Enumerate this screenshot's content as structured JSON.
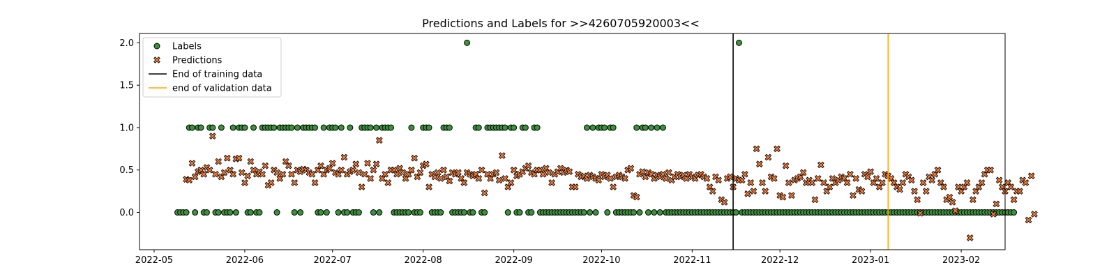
{
  "chart_data": {
    "type": "scatter",
    "title": "Predictions and Labels for >>4260705920003<<",
    "xlabel": "",
    "ylabel": "",
    "x_axis": {
      "type": "date",
      "range": [
        "2022-04-26",
        "2023-02-16"
      ],
      "ticks": [
        "2022-05-01",
        "2022-06-01",
        "2022-07-01",
        "2022-08-01",
        "2022-09-01",
        "2022-10-01",
        "2022-11-01",
        "2022-12-01",
        "2023-01-01",
        "2023-02-01"
      ],
      "tick_labels": [
        "2022-05",
        "2022-06",
        "2022-07",
        "2022-08",
        "2022-09",
        "2022-10",
        "2022-11",
        "2022-12",
        "2023-01",
        "2023-02"
      ]
    },
    "y_axis": {
      "range": [
        -0.44,
        2.11
      ],
      "ticks": [
        0.0,
        0.5,
        1.0,
        1.5,
        2.0
      ],
      "tick_labels": [
        "0.0",
        "0.5",
        "1.0",
        "1.5",
        "2.0"
      ]
    },
    "grid": false,
    "legend_placement": "upper-left",
    "legend": [
      {
        "label": "Labels",
        "marker": "circle",
        "color": "#2ca02c"
      },
      {
        "label": "Predictions",
        "marker": "x-cross",
        "color": "#ff7f0e"
      },
      {
        "label": "End of training data",
        "marker": "line",
        "color": "#000000"
      },
      {
        "label": "end of validation data",
        "marker": "line",
        "color": "#ffa500"
      }
    ],
    "vlines": [
      {
        "name": "End of training data",
        "x": "2022-11-15",
        "color": "#000000"
      },
      {
        "name": "end of validation data",
        "x": "2023-01-07",
        "color": "#ffa500"
      }
    ],
    "series": [
      {
        "name": "Labels",
        "color": "#3a923a",
        "marker": "circle",
        "start_date": "2022-05-09",
        "values": [
          0,
          0,
          0,
          0,
          1,
          1,
          0,
          1,
          1,
          0,
          0,
          1,
          1,
          0,
          0,
          1,
          0,
          0,
          0,
          1,
          0,
          1,
          1,
          1,
          0,
          0,
          1,
          0,
          0,
          1,
          1,
          1,
          1,
          1,
          0,
          1,
          1,
          1,
          1,
          1,
          0,
          1,
          0,
          1,
          1,
          1,
          1,
          1,
          0,
          0,
          1,
          0,
          1,
          1,
          1,
          0,
          1,
          0,
          0,
          1,
          0,
          0,
          0,
          1,
          1,
          1,
          1,
          0,
          1,
          0,
          1,
          1,
          1,
          1,
          0,
          0,
          0,
          0,
          0,
          0,
          1,
          0,
          0,
          0,
          1,
          1,
          1,
          0,
          0,
          0,
          0,
          1,
          1,
          1,
          0,
          0,
          0,
          0,
          0,
          2,
          0,
          0,
          1,
          1,
          0,
          0,
          1,
          1,
          1,
          1,
          1,
          1,
          1,
          0,
          1,
          1,
          0,
          0,
          1,
          1,
          0,
          0,
          1,
          1,
          0,
          0,
          0,
          0,
          0,
          0,
          0,
          0,
          0,
          0,
          0,
          0,
          0,
          0,
          0,
          0,
          1,
          0,
          1,
          0,
          1,
          1,
          1,
          0,
          1,
          1,
          0,
          0,
          0,
          0,
          0,
          0,
          0,
          1,
          0,
          1,
          1,
          0,
          1,
          0,
          1,
          0,
          1,
          0,
          0,
          0,
          0,
          0,
          0,
          0,
          0,
          0,
          0,
          0,
          0,
          0,
          0,
          0,
          0,
          0,
          0,
          0,
          0,
          0,
          0,
          0,
          0,
          0,
          2,
          0,
          0,
          0,
          0,
          0,
          0,
          0,
          0,
          0,
          0,
          0,
          0,
          0,
          0,
          0,
          0,
          0,
          0,
          0,
          0,
          0,
          0,
          0,
          0,
          0,
          0,
          0,
          0,
          0,
          0,
          0,
          0,
          0,
          0,
          0,
          0,
          0,
          0,
          0,
          0,
          0,
          0,
          0,
          0,
          0,
          0,
          0,
          0,
          0,
          0,
          0,
          0,
          0,
          0,
          0,
          0,
          0,
          0,
          0,
          0,
          0,
          0,
          0,
          0,
          0,
          0,
          0,
          0,
          0,
          0,
          0,
          0,
          0,
          0,
          0,
          0,
          0,
          0,
          0,
          0,
          0,
          0,
          0,
          0,
          0,
          0,
          0,
          0,
          0,
          0,
          0,
          0,
          0,
          0
        ]
      },
      {
        "name": "Predictions",
        "color": "#f07a36",
        "marker": "x-cross",
        "start_date": "2022-05-12",
        "values": [
          0.39,
          0.38,
          0.58,
          0.42,
          0.48,
          0.5,
          0.45,
          0.53,
          0.5,
          0.9,
          0.45,
          0.6,
          0.42,
          0.47,
          0.64,
          0.5,
          0.45,
          0.63,
          0.64,
          0.47,
          0.35,
          0.43,
          0.6,
          0.5,
          0.45,
          0.48,
          0.45,
          0.55,
          0.32,
          0.35,
          0.5,
          0.47,
          0.4,
          0.45,
          0.6,
          0.55,
          0.45,
          0.35,
          0.5,
          0.48,
          0.51,
          0.5,
          0.47,
          0.45,
          0.35,
          0.5,
          0.55,
          0.45,
          0.5,
          0.52,
          0.58,
          0.47,
          0.45,
          0.5,
          0.65,
          0.45,
          0.48,
          0.5,
          0.57,
          0.47,
          0.3,
          0.45,
          0.58,
          0.4,
          0.5,
          0.57,
          0.85,
          0.4,
          0.45,
          0.35,
          0.5,
          0.5,
          0.45,
          0.52,
          0.47,
          0.4,
          0.45,
          0.5,
          0.64,
          0.42,
          0.47,
          0.55,
          0.57,
          0.3,
          0.45,
          0.42,
          0.47,
          0.4,
          0.5,
          0.42,
          0.37,
          0.47,
          0.45,
          0.47,
          0.4,
          0.35,
          0.47,
          0.45,
          0.43,
          0.45,
          0.4,
          0.5,
          0.23,
          0.45,
          0.4,
          0.45,
          0.47,
          0.38,
          0.67,
          0.4,
          0.3,
          0.35,
          0.5,
          0.43,
          0.45,
          0.48,
          0.52,
          0.55,
          0.47,
          0.45,
          0.5,
          0.5,
          0.45,
          0.52,
          0.47,
          0.35,
          0.45,
          0.48,
          0.52,
          0.47,
          0.5,
          0.48,
          0.3,
          0.3,
          0.45,
          0.42,
          0.43,
          0.4,
          0.44,
          0.42,
          0.4,
          0.38,
          0.45,
          0.42,
          0.44,
          0.4,
          0.3,
          0.42,
          0.44,
          0.42,
          0.4,
          0.5,
          0.52,
          0.2,
          0.18,
          0.45,
          0.48,
          0.42,
          0.47,
          0.45,
          0.4,
          0.44,
          0.42,
          0.45,
          0.4,
          0.47,
          0.38,
          0.42,
          0.45,
          0.42,
          0.44,
          0.4,
          0.45,
          0.42,
          0.4,
          0.44,
          0.45,
          0.42,
          0.4,
          0.3,
          0.25,
          0.42,
          0.38,
          0.15,
          0.12,
          0.4,
          0.42,
          0.3,
          0.4,
          0.38,
          0.38,
          0.45,
          0.22,
          0.35,
          0.25,
          0.75,
          0.57,
          0.35,
          0.25,
          0.65,
          0.42,
          0.4,
          0.75,
          0.2,
          0.18,
          0.55,
          0.35,
          0.2,
          0.38,
          0.4,
          0.42,
          0.47,
          0.35,
          0.38,
          0.35,
          0.15,
          0.4,
          0.56,
          0.35,
          0.25,
          0.3,
          0.4,
          0.35,
          0.38,
          0.42,
          0.4,
          0.35,
          0.45,
          0.2,
          0.4,
          0.27,
          0.25,
          0.45,
          0.42,
          0.48,
          0.35,
          0.4,
          0.3,
          0.35,
          0.45,
          0.43,
          0.4,
          0.35,
          0.3,
          0.27,
          0.35,
          0.45,
          0.42,
          0.38,
          0.25,
          0.15,
          -0.01,
          0.35,
          0.25,
          0.42,
          0.38,
          0.45,
          0.5,
          0.35,
          0.3,
          0.15,
          0.18,
          0.12,
          0.02,
          0.3,
          0.25,
          0.3,
          0.35,
          -0.3,
          0.15,
          0.25,
          0.3,
          0.35,
          0.45,
          0.5,
          0.5,
          -0.02,
          0.1,
          0.38,
          0.3,
          0.25,
          0.35,
          0.3,
          0.15,
          0.25,
          0.25,
          0.38,
          0.35,
          -0.09,
          0.43,
          -0.02
        ]
      }
    ]
  }
}
